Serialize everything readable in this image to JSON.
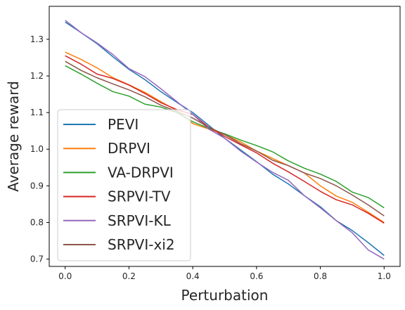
{
  "chart_data": {
    "type": "line",
    "title": "",
    "xlabel": "Perturbation",
    "ylabel": "Average reward",
    "xlim": [
      -0.05,
      1.05
    ],
    "ylim": [
      0.68,
      1.39
    ],
    "xticks": [
      0.0,
      0.2,
      0.4,
      0.6,
      0.8,
      1.0
    ],
    "xtick_labels": [
      "0.0",
      "0.2",
      "0.4",
      "0.6",
      "0.8",
      "1.0"
    ],
    "yticks": [
      0.7,
      0.8,
      0.9,
      1.0,
      1.1,
      1.2,
      1.3
    ],
    "ytick_labels": [
      "0.7",
      "0.8",
      "0.9",
      "1.0",
      "1.1",
      "1.2",
      "1.3"
    ],
    "grid": false,
    "legend_position": "lower-left",
    "x": [
      0.0,
      0.05,
      0.1,
      0.15,
      0.2,
      0.25,
      0.3,
      0.35,
      0.4,
      0.45,
      0.5,
      0.55,
      0.6,
      0.65,
      0.7,
      0.75,
      0.8,
      0.85,
      0.9,
      0.95,
      1.0
    ],
    "series": [
      {
        "name": "PEVI",
        "color": "#1f77b4",
        "values": [
          1.347,
          1.318,
          1.288,
          1.252,
          1.218,
          1.19,
          1.157,
          1.128,
          1.1,
          1.065,
          1.03,
          0.998,
          0.966,
          0.932,
          0.905,
          0.873,
          0.843,
          0.805,
          0.778,
          0.745,
          0.71
        ]
      },
      {
        "name": "DRPVI",
        "color": "#ff7f0e",
        "values": [
          1.265,
          1.245,
          1.222,
          1.195,
          1.176,
          1.155,
          1.13,
          1.105,
          1.07,
          1.055,
          1.04,
          1.02,
          0.995,
          0.975,
          0.955,
          0.935,
          0.9,
          0.872,
          0.855,
          0.828,
          0.8
        ]
      },
      {
        "name": "VA-DRPVI",
        "color": "#2ca02c",
        "values": [
          1.228,
          1.205,
          1.18,
          1.157,
          1.145,
          1.123,
          1.115,
          1.1,
          1.075,
          1.057,
          1.042,
          1.025,
          1.01,
          0.993,
          0.968,
          0.948,
          0.932,
          0.912,
          0.883,
          0.868,
          0.84
        ]
      },
      {
        "name": "SRPVI-TV",
        "color": "#d62728",
        "values": [
          1.255,
          1.232,
          1.205,
          1.193,
          1.175,
          1.152,
          1.127,
          1.108,
          1.095,
          1.06,
          1.035,
          1.012,
          0.99,
          0.962,
          0.938,
          0.912,
          0.885,
          0.862,
          0.848,
          0.825,
          0.798
        ]
      },
      {
        "name": "SRPVI-KL",
        "color": "#9467bd",
        "values": [
          1.352,
          1.318,
          1.29,
          1.258,
          1.22,
          1.198,
          1.165,
          1.13,
          1.095,
          1.055,
          1.03,
          0.995,
          0.965,
          0.937,
          0.915,
          0.873,
          0.84,
          0.805,
          0.772,
          0.725,
          0.7
        ]
      },
      {
        "name": "SRPVI-xi2",
        "color": "#8c564b",
        "values": [
          1.24,
          1.215,
          1.195,
          1.178,
          1.162,
          1.143,
          1.12,
          1.103,
          1.085,
          1.06,
          1.04,
          1.015,
          0.995,
          0.97,
          0.955,
          0.935,
          0.92,
          0.9,
          0.875,
          0.848,
          0.818
        ]
      }
    ]
  }
}
